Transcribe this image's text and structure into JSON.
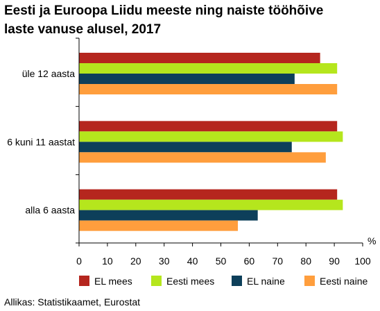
{
  "title_line1": "Eesti ja Euroopa Liidu meeste ning naiste tööhõive",
  "title_line2": "laste vanuse alusel, 2017",
  "source": "Allikas: Statistikaamet, Eurostat",
  "chart_data": {
    "type": "bar",
    "orientation": "horizontal",
    "categories": [
      "üle 12 aasta",
      "6 kuni 11 aastat",
      "alla 6 aasta"
    ],
    "series": [
      {
        "name": "EL mees",
        "color": "#b5261e",
        "values": [
          85,
          91,
          91
        ]
      },
      {
        "name": "Eesti mees",
        "color": "#b5e61d",
        "values": [
          91,
          93,
          93
        ]
      },
      {
        "name": "EL naine",
        "color": "#0d3f5a",
        "values": [
          76,
          75,
          63
        ]
      },
      {
        "name": "Eesti naine",
        "color": "#ff9e3d",
        "values": [
          91,
          87,
          56
        ]
      }
    ],
    "unit": "%",
    "xlim": [
      0,
      100
    ],
    "xticks": [
      0,
      10,
      20,
      30,
      40,
      50,
      60,
      70,
      80,
      90,
      100
    ],
    "grid": false,
    "legend_position": "bottom"
  }
}
